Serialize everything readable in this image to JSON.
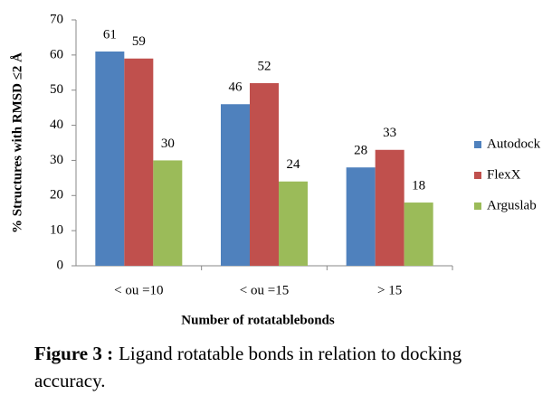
{
  "chart_data": {
    "type": "bar",
    "y_label": "% Structures with RMSD ≤2 Å",
    "x_label": "Number of rotatablebonds",
    "caption_label": "Figure 3 :",
    "caption": "Ligand rotatable bonds in relation to docking accuracy.",
    "categories": [
      "< ou =10",
      "< ou =15",
      "> 15"
    ],
    "series": [
      {
        "name": "Autodock",
        "color": "#4f81bd",
        "values": [
          61,
          46,
          28
        ]
      },
      {
        "name": "FlexX",
        "color": "#c0504d",
        "values": [
          59,
          52,
          33
        ]
      },
      {
        "name": "Arguslab",
        "color": "#9bbb59",
        "values": [
          30,
          24,
          18
        ]
      }
    ],
    "ylim": [
      0,
      70
    ],
    "yticks": [
      0,
      10,
      20,
      30,
      40,
      50,
      60,
      70
    ],
    "grid": false,
    "legend": "right"
  }
}
